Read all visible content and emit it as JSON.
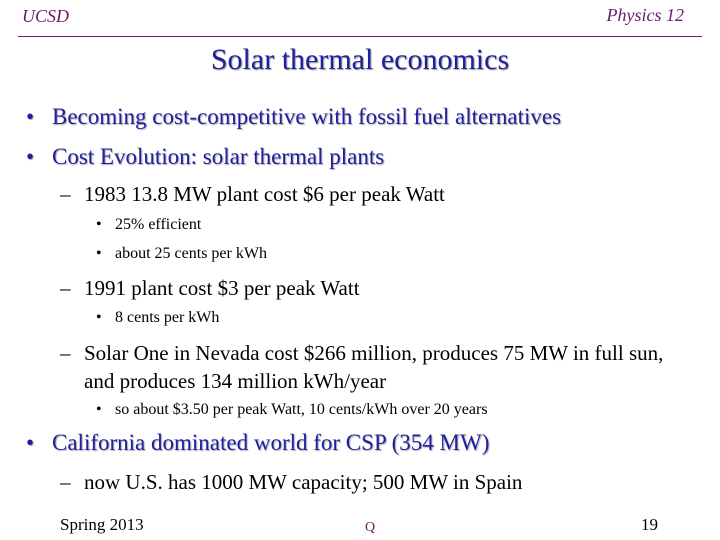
{
  "header": {
    "left": "UCSD",
    "right": "Physics 12"
  },
  "title": "Solar thermal economics",
  "bullets": [
    {
      "mark": "•",
      "text": "Becoming cost-competitive with fossil fuel alternatives"
    },
    {
      "mark": "•",
      "text": "Cost Evolution: solar thermal plants"
    },
    {
      "mark": "•",
      "text": "California dominated world for CSP (354 MW)"
    }
  ],
  "sub": [
    {
      "mark": "–",
      "text": "1983 13.8 MW plant cost $6 per peak Watt"
    },
    {
      "mark": "–",
      "text": "1991 plant cost $3 per peak Watt"
    },
    {
      "mark": "–",
      "text": "Solar One in Nevada cost $266 million, produces 75 MW in full sun, and produces 134 million kWh/year"
    },
    {
      "mark": "–",
      "text": "now U.S. has 1000 MW capacity; 500 MW in Spain"
    }
  ],
  "subsub": [
    {
      "mark": "•",
      "text": "25% efficient"
    },
    {
      "mark": "•",
      "text": "about 25 cents per kWh"
    },
    {
      "mark": "•",
      "text": "8 cents per kWh"
    },
    {
      "mark": "•",
      "text": "so about $3.50 per peak Watt, 10 cents/kWh over 20 years"
    }
  ],
  "footer": {
    "left": "Spring 2013",
    "mid": "Q",
    "right": "19"
  }
}
